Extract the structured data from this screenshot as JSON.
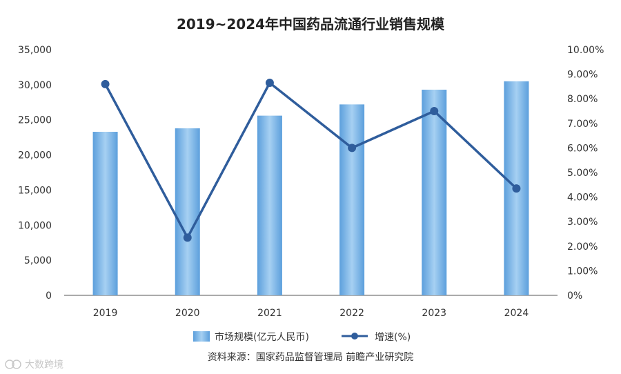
{
  "chart_data": {
    "type": "bar",
    "title": "2019~2024年中国药品流通行业销售规模",
    "categories": [
      "2019",
      "2020",
      "2021",
      "2022",
      "2023",
      "2024"
    ],
    "series": [
      {
        "name": "市场规模(亿元人民币)",
        "type": "bar",
        "axis": "left",
        "values": [
          23300,
          23800,
          25600,
          27200,
          29300,
          30500
        ]
      },
      {
        "name": "增速(%)",
        "type": "line",
        "axis": "right",
        "values": [
          8.6,
          2.35,
          8.65,
          6.0,
          7.5,
          4.35
        ]
      }
    ],
    "left_axis": {
      "min": 0,
      "max": 35000,
      "ticks": [
        "0",
        "5,000",
        "10,000",
        "15,000",
        "20,000",
        "25,000",
        "30,000",
        "35,000"
      ]
    },
    "right_axis": {
      "min": 0,
      "max": 10,
      "ticks": [
        "0%",
        "1.00%",
        "2.00%",
        "3.00%",
        "4.00%",
        "5.00%",
        "6.00%",
        "7.00%",
        "8.00%",
        "9.00%",
        "10.00%"
      ]
    },
    "grid": false,
    "legend_position": "bottom",
    "colors": {
      "bar_light": "#9ccaf0",
      "bar_dark": "#5c9fdc",
      "line": "#2f5d9c",
      "axis": "#555555"
    }
  },
  "source_text": "资料来源：国家药品监督管理局 前瞻产业研究院",
  "watermark": "大数跨境"
}
